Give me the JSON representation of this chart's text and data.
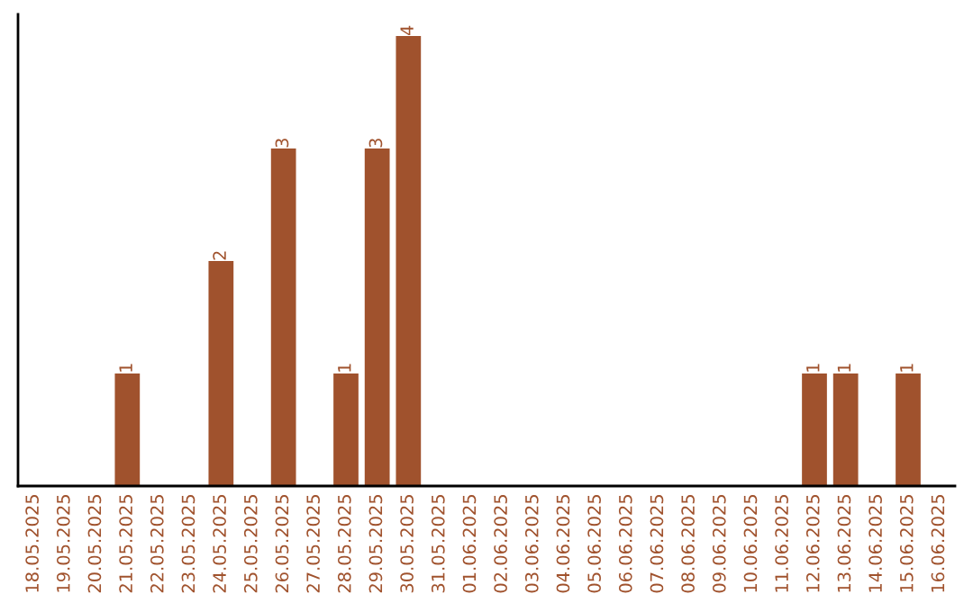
{
  "chart_data": {
    "type": "bar",
    "categories": [
      "18.05.2025",
      "19.05.2025",
      "20.05.2025",
      "21.05.2025",
      "22.05.2025",
      "23.05.2025",
      "24.05.2025",
      "25.05.2025",
      "26.05.2025",
      "27.05.2025",
      "28.05.2025",
      "29.05.2025",
      "30.05.2025",
      "31.05.2025",
      "01.06.2025",
      "02.06.2025",
      "03.06.2025",
      "04.06.2025",
      "05.06.2025",
      "06.06.2025",
      "07.06.2025",
      "08.06.2025",
      "09.06.2025",
      "10.06.2025",
      "11.06.2025",
      "12.06.2025",
      "13.06.2025",
      "14.06.2025",
      "15.06.2025",
      "16.06.2025"
    ],
    "values": [
      0,
      0,
      0,
      1,
      0,
      0,
      2,
      0,
      3,
      0,
      1,
      3,
      4,
      0,
      0,
      0,
      0,
      0,
      0,
      0,
      0,
      0,
      0,
      0,
      0,
      1,
      1,
      0,
      1,
      0
    ],
    "color": "#a0522d",
    "value_labels": [
      null,
      null,
      null,
      "1",
      null,
      null,
      "2",
      null,
      "3",
      null,
      "1",
      "3",
      "4",
      null,
      null,
      null,
      null,
      null,
      null,
      null,
      null,
      null,
      null,
      null,
      null,
      "1",
      "1",
      null,
      "1",
      null
    ],
    "tick_labels": "x",
    "grid": false
  }
}
